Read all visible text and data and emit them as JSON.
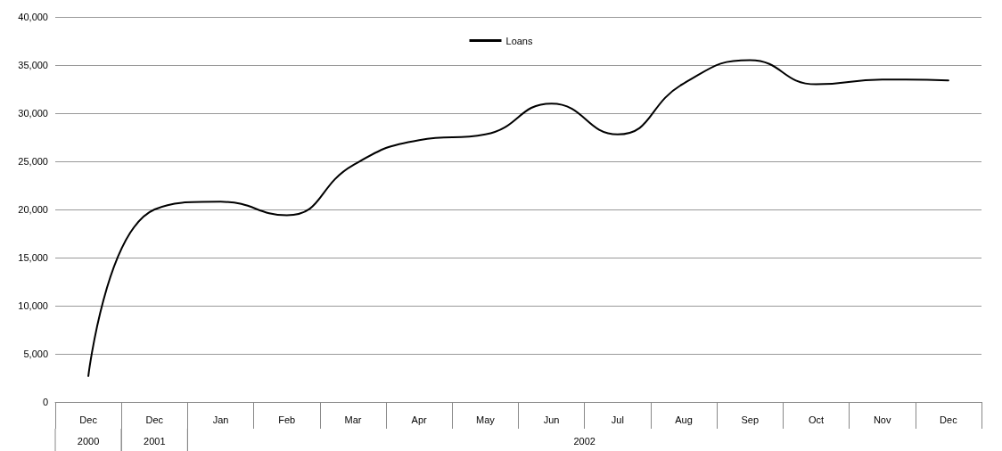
{
  "chart_data": {
    "type": "line",
    "categories": [
      "Dec",
      "Dec",
      "Jan",
      "Feb",
      "Mar",
      "Apr",
      "May",
      "Jun",
      "Jul",
      "Aug",
      "Sep",
      "Oct",
      "Nov",
      "Dec"
    ],
    "series": [
      {
        "name": "Loans",
        "color": "#000000",
        "values": [
          2700,
          20000,
          20800,
          19400,
          24600,
          27200,
          27800,
          31000,
          27800,
          33100,
          35500,
          33000,
          33500,
          33400
        ]
      }
    ],
    "ylim": [
      0,
      40000
    ],
    "yticks": [
      0,
      {
        "value": 5000,
        "label": "5,000"
      },
      {
        "value": 10000,
        "label": "10,000"
      },
      {
        "value": 15000,
        "label": "15,000"
      },
      {
        "value": 20000,
        "label": "20,000"
      },
      {
        "value": 25000,
        "label": "25,000"
      },
      {
        "value": 30000,
        "label": "30,000"
      },
      {
        "value": 35000,
        "label": "35,000"
      },
      {
        "value": 40000,
        "label": "40,000"
      }
    ],
    "grid": "y",
    "legend": "top",
    "marker": "none",
    "line_style": "solid",
    "annotations": [
      "2000",
      "2001",
      "2002"
    ]
  }
}
